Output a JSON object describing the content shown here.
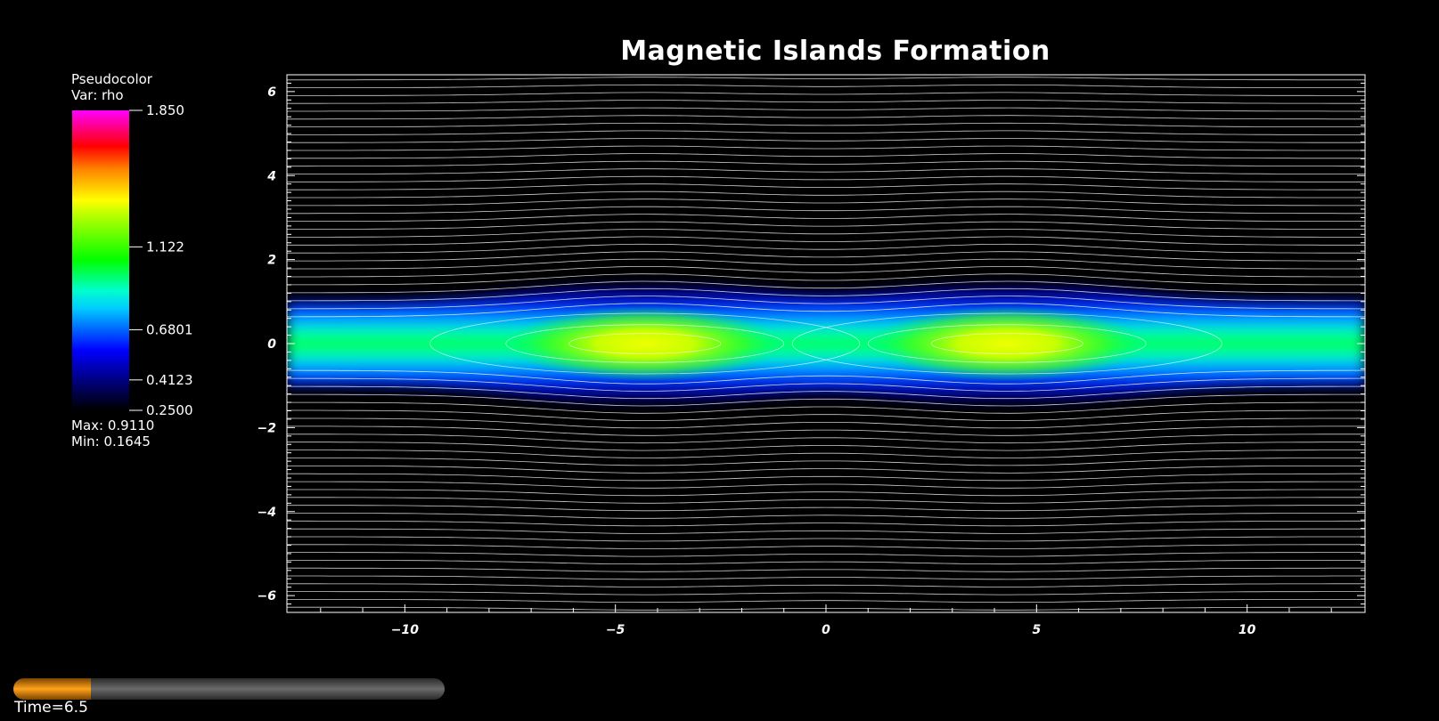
{
  "window": {
    "title": "Magnetic Islands Formation"
  },
  "legend": {
    "line1": "Pseudocolor",
    "line2": "Var: rho",
    "max_text": "Max:  0.9110",
    "min_text": "Min:  0.1645",
    "ticks": [
      {
        "value": 1.85,
        "label": "1.850"
      },
      {
        "value": 1.122,
        "label": "1.122"
      },
      {
        "value": 0.6801,
        "label": "0.6801"
      },
      {
        "value": 0.4123,
        "label": "0.4123"
      },
      {
        "value": 0.25,
        "label": "0.2500"
      }
    ]
  },
  "time": {
    "label": "Time=6.5",
    "progress": 0.18
  },
  "chart_data": {
    "type": "heatmap",
    "title": "Magnetic Islands Formation",
    "variable": "rho",
    "xlim": [
      -12.8,
      12.8
    ],
    "ylim": [
      -6.4,
      6.4
    ],
    "x_ticks": [
      -10,
      -5,
      0,
      5,
      10
    ],
    "y_ticks": [
      -6,
      -4,
      -2,
      0,
      2,
      4,
      6
    ],
    "x_tick_labels": [
      "−10",
      "−5",
      "0",
      "5",
      "10"
    ],
    "y_tick_labels": [
      "−6",
      "−4",
      "−2",
      "0",
      "2",
      "4",
      "6"
    ],
    "color_range": [
      0.25,
      1.85
    ],
    "data_max": 0.911,
    "data_min": 0.1645,
    "islands": [
      {
        "x_center": -4.3,
        "y_center": 0.0
      },
      {
        "x_center": 4.3,
        "y_center": 0.0
      }
    ],
    "x_points": [
      -12.8,
      0,
      12.8
    ],
    "colors": {
      "background": "#000000",
      "field_lines": "#ffffff"
    }
  }
}
